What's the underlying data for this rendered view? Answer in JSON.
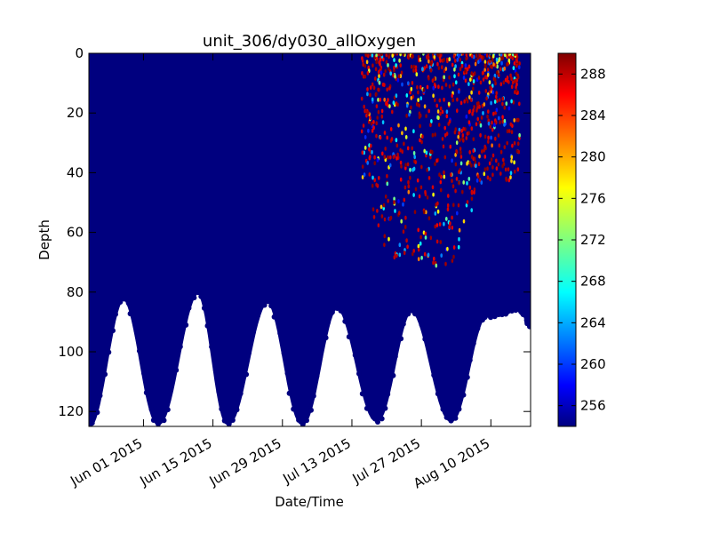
{
  "chart_data": {
    "type": "scatter",
    "title": "unit_306/dy030_allOxygen",
    "xlabel": "Date/Time",
    "ylabel": "Depth",
    "x_axis_type": "date",
    "xlim": [
      "2015-05-21",
      "2015-08-18"
    ],
    "ylim": [
      125,
      0
    ],
    "y_inverted": true,
    "x_ticks": [
      {
        "date": "2015-06-01",
        "label": "Jun 01 2015"
      },
      {
        "date": "2015-06-15",
        "label": "Jun 15 2015"
      },
      {
        "date": "2015-06-29",
        "label": "Jun 29 2015"
      },
      {
        "date": "2015-07-13",
        "label": "Jul 13 2015"
      },
      {
        "date": "2015-07-27",
        "label": "Jul 27 2015"
      },
      {
        "date": "2015-08-10",
        "label": "Aug 10 2015"
      }
    ],
    "y_ticks": [
      0,
      20,
      40,
      60,
      80,
      100,
      120
    ],
    "colorbar": {
      "colormap": "jet",
      "range": [
        254,
        290
      ],
      "ticks": [
        256,
        260,
        264,
        268,
        272,
        276,
        280,
        284,
        288
      ]
    },
    "dive_troughs": [
      {
        "date": "2015-05-21",
        "max_depth": 125
      },
      {
        "date": "2015-05-28",
        "max_depth": 82
      },
      {
        "date": "2015-06-04",
        "max_depth": 124
      },
      {
        "date": "2015-06-12",
        "max_depth": 80
      },
      {
        "date": "2015-06-18",
        "max_depth": 124
      },
      {
        "date": "2015-06-26",
        "max_depth": 83
      },
      {
        "date": "2015-07-03",
        "max_depth": 124
      },
      {
        "date": "2015-07-10",
        "max_depth": 85
      },
      {
        "date": "2015-07-18",
        "max_depth": 123
      },
      {
        "date": "2015-07-25",
        "max_depth": 86
      },
      {
        "date": "2015-08-02",
        "max_depth": 123
      },
      {
        "date": "2015-08-09",
        "max_depth": 88
      },
      {
        "date": "2015-08-16",
        "max_depth": 86
      },
      {
        "date": "2015-08-18",
        "max_depth": 91
      }
    ],
    "background_value": 254,
    "high_oxygen_region": {
      "start_date": "2015-07-15",
      "end_date": "2015-08-16",
      "depth_range": [
        0,
        72
      ],
      "value_range": [
        256,
        290
      ]
    },
    "grid": false,
    "legend": "none"
  },
  "colors": {
    "background_points": "#00007f",
    "axes": "#000000"
  }
}
